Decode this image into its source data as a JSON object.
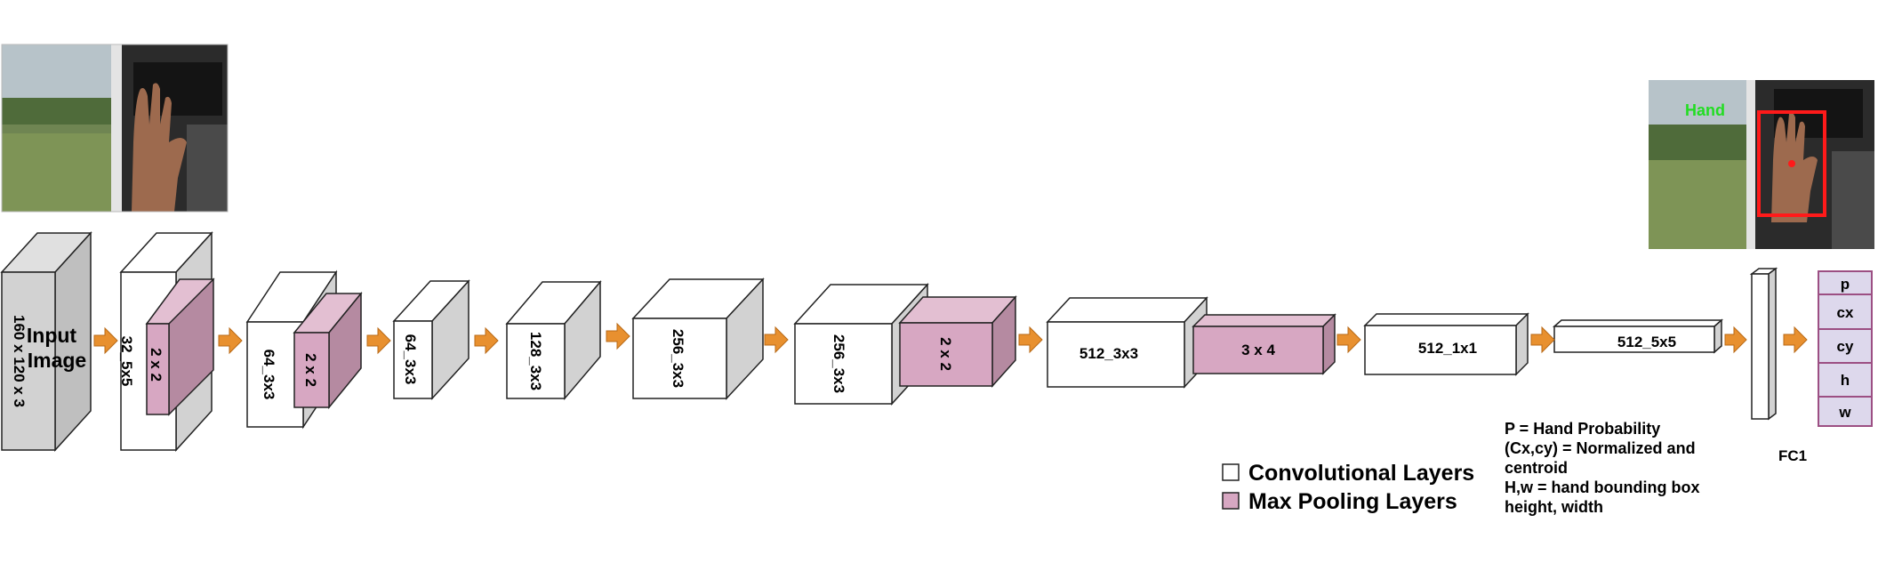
{
  "colors": {
    "conv_face": "#ffffff",
    "conv_side": "#d2d2d2",
    "input_face": "#d2d2d2",
    "pool_face": "#d7a7c2",
    "pool_top": "#e3bfd2",
    "pool_side": "#b58aa1",
    "arrow": "#e8902f",
    "output_face": "#ddd8ec",
    "output_border": "#9c4f83",
    "bbox": "#ff1a1a",
    "hand_text": "#22dd22"
  },
  "input_photo": {
    "icon": "photo-window-hand"
  },
  "output_photo": {
    "icon": "photo-window-hand-detected",
    "label": "Hand"
  },
  "blocks": {
    "input": {
      "label_line1": "Input",
      "label_line2": "Image",
      "dims": "160 x 120 x 3"
    },
    "conv1": {
      "label": "32_5x5"
    },
    "pool1": {
      "label": "2 x 2"
    },
    "conv2": {
      "label": "64_3x3"
    },
    "pool2": {
      "label": "2 x 2"
    },
    "conv3": {
      "label": "64_3x3"
    },
    "conv4": {
      "label": "128_3x3"
    },
    "conv5": {
      "label": "256_3x3"
    },
    "conv6": {
      "label": "256_3x3"
    },
    "pool3": {
      "label": "2 x 2"
    },
    "conv7": {
      "label": "512_3x3"
    },
    "pool4": {
      "label": "3 x 4"
    },
    "conv8": {
      "label": "512_1x1"
    },
    "conv9": {
      "label": "512_5x5"
    },
    "fc1": {
      "label": "FC1"
    }
  },
  "outputs": [
    "p",
    "cx",
    "cy",
    "h",
    "w"
  ],
  "legend": {
    "conv": "Convolutional Layers",
    "pool": "Max Pooling Layers"
  },
  "notes": [
    "P = Hand Probability",
    "(Cx,cy) = Normalized and",
    "centroid",
    "H,w = hand bounding box",
    "height, width"
  ]
}
